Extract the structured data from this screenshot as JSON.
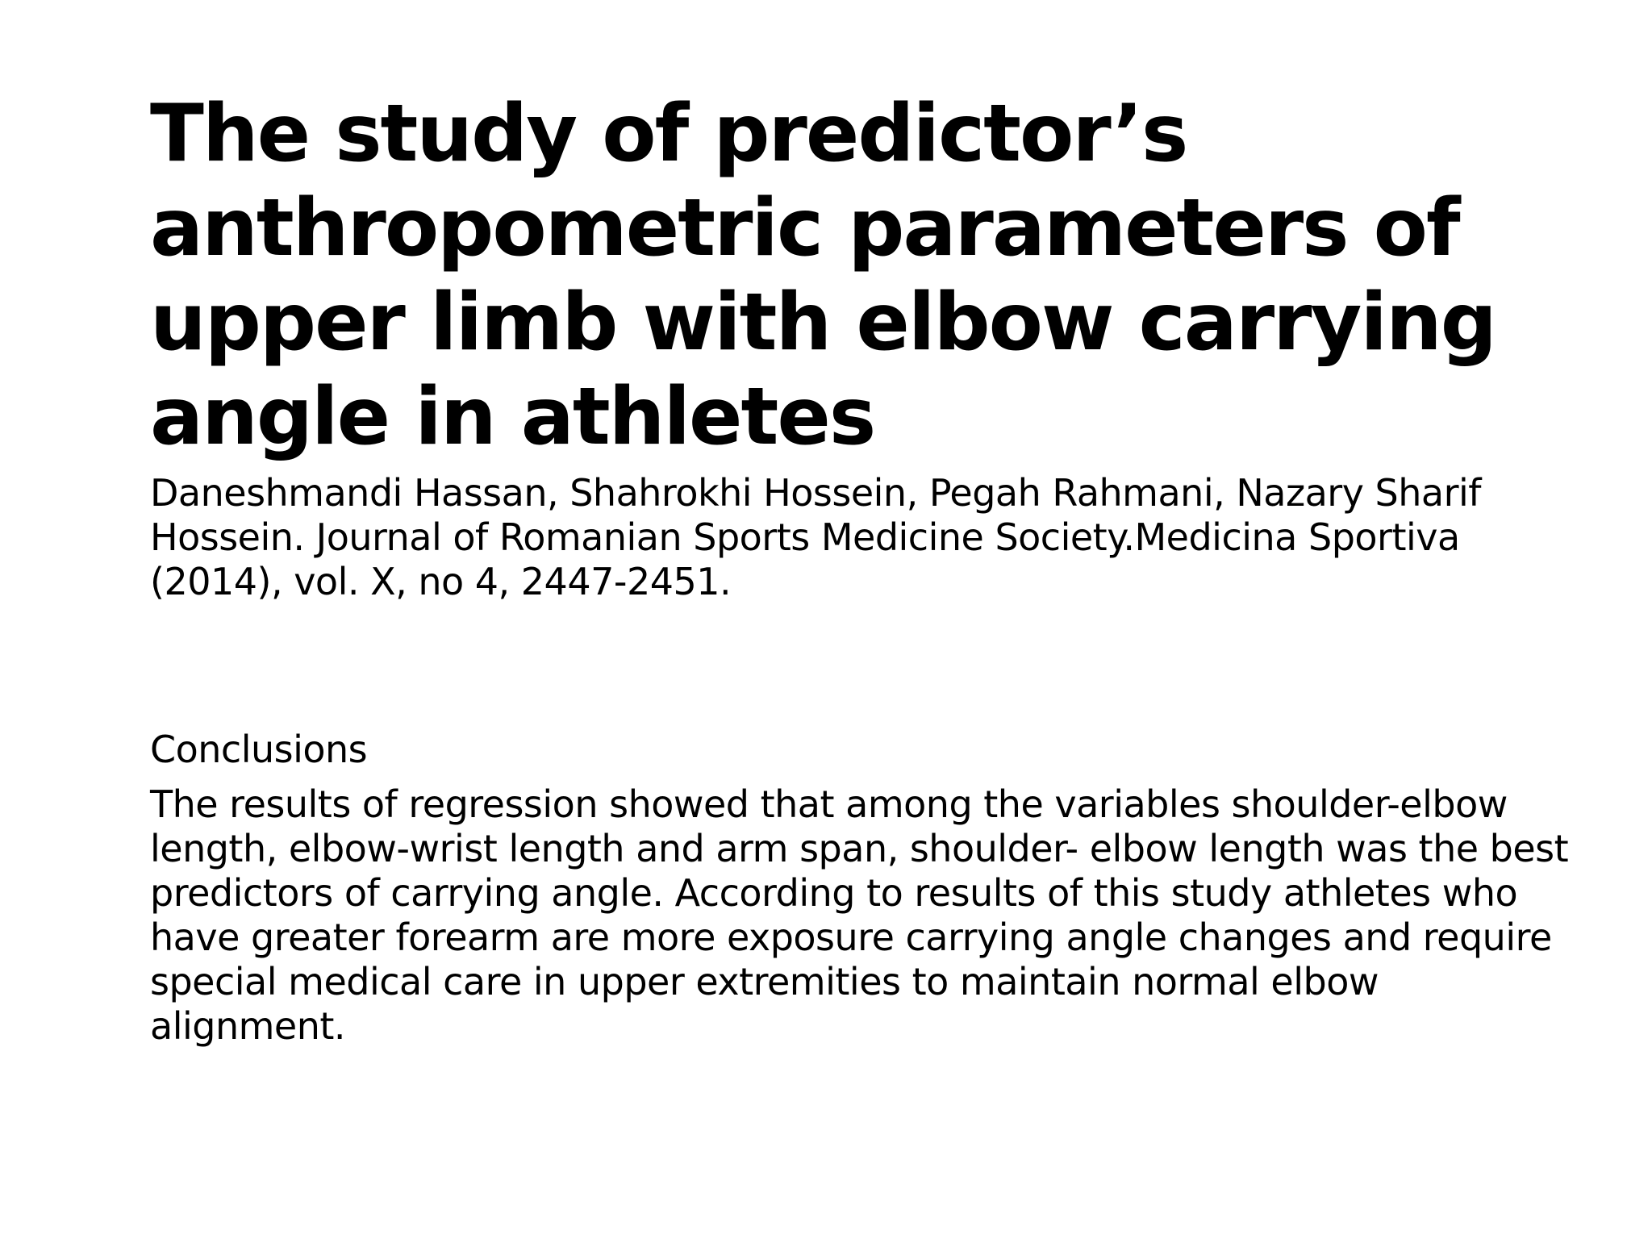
{
  "slide": {
    "title": "The study of predictor’s anthropometric parameters of upper limb with elbow carrying angle in athletes",
    "citation": "Daneshmandi Hassan, Shahrokhi Hossein, Pegah Rahmani, Nazary Sharif Hossein. Journal of Romanian Sports Medicine Society.Medicina Sportiva (2014), vol. X, no 4, 2447-2451.",
    "section_heading": "Conclusions",
    "conclusion_text": "The results of regression showed that among the variables shoulder-elbow length, elbow-wrist length and arm span, shoulder- elbow length was the best predictors of carrying angle. According to results of this study athletes who have greater forearm are more exposure carrying angle changes and require special medical care in upper extremities to maintain normal elbow alignment."
  }
}
